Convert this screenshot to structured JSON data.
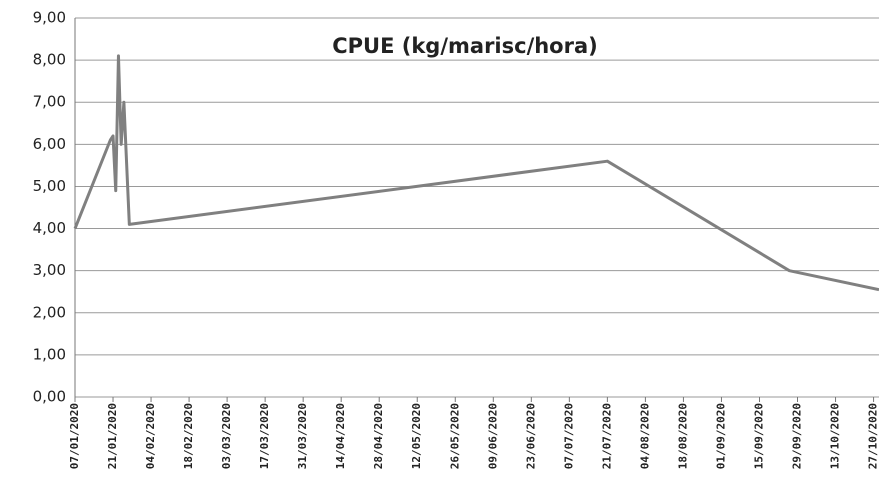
{
  "chart_data": {
    "type": "line",
    "title": "CPUE (kg/marisc/hora)",
    "x": [
      "2020-01-07",
      "2020-01-20",
      "2020-01-21",
      "2020-01-22",
      "2020-01-23",
      "2020-01-24",
      "2020-01-25",
      "2020-01-27",
      "2020-07-21",
      "2020-09-26",
      "2020-10-29"
    ],
    "series": [
      {
        "name": "CPUE",
        "color": "#808080",
        "values": [
          4.0,
          6.1,
          6.2,
          4.9,
          8.1,
          6.0,
          7.0,
          4.1,
          5.6,
          3.0,
          2.55
        ]
      }
    ],
    "xlim": [
      "2020-01-07",
      "2020-10-29"
    ],
    "xticks": [
      {
        "value": "2020-01-07",
        "label": "07/01/2020"
      },
      {
        "value": "2020-01-21",
        "label": "21/01/2020"
      },
      {
        "value": "2020-02-04",
        "label": "04/02/2020"
      },
      {
        "value": "2020-02-18",
        "label": "18/02/2020"
      },
      {
        "value": "2020-03-03",
        "label": "03/03/2020"
      },
      {
        "value": "2020-03-17",
        "label": "17/03/2020"
      },
      {
        "value": "2020-03-31",
        "label": "31/03/2020"
      },
      {
        "value": "2020-04-14",
        "label": "14/04/2020"
      },
      {
        "value": "2020-04-28",
        "label": "28/04/2020"
      },
      {
        "value": "2020-05-12",
        "label": "12/05/2020"
      },
      {
        "value": "2020-05-26",
        "label": "26/05/2020"
      },
      {
        "value": "2020-06-09",
        "label": "09/06/2020"
      },
      {
        "value": "2020-06-23",
        "label": "23/06/2020"
      },
      {
        "value": "2020-07-07",
        "label": "07/07/2020"
      },
      {
        "value": "2020-07-21",
        "label": "21/07/2020"
      },
      {
        "value": "2020-08-04",
        "label": "04/08/2020"
      },
      {
        "value": "2020-08-18",
        "label": "18/08/2020"
      },
      {
        "value": "2020-09-01",
        "label": "01/09/2020"
      },
      {
        "value": "2020-09-15",
        "label": "15/09/2020"
      },
      {
        "value": "2020-09-29",
        "label": "29/09/2020"
      },
      {
        "value": "2020-10-13",
        "label": "13/10/2020"
      },
      {
        "value": "2020-10-27",
        "label": "27/10/2020"
      }
    ],
    "ylim": [
      0,
      9
    ],
    "yticks": [
      {
        "value": 0,
        "label": "0,00"
      },
      {
        "value": 1,
        "label": "1,00"
      },
      {
        "value": 2,
        "label": "2,00"
      },
      {
        "value": 3,
        "label": "3,00"
      },
      {
        "value": 4,
        "label": "4,00"
      },
      {
        "value": 5,
        "label": "5,00"
      },
      {
        "value": 6,
        "label": "6,00"
      },
      {
        "value": 7,
        "label": "7,00"
      },
      {
        "value": 8,
        "label": "8,00"
      },
      {
        "value": 9,
        "label": "9,00"
      }
    ],
    "grid": true
  }
}
